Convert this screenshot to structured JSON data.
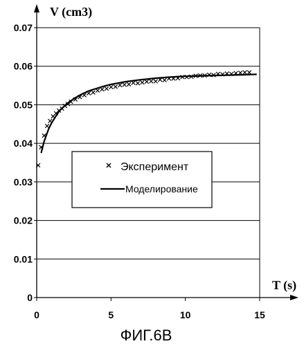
{
  "chart_data": {
    "type": "scatter",
    "ylabel": "V (cm3)",
    "xlabel": "T (s)",
    "xlim": [
      0,
      15
    ],
    "ylim": [
      0,
      0.07
    ],
    "x_ticks": [
      "0",
      "5",
      "10",
      "15"
    ],
    "y_ticks": [
      "0",
      "0.01",
      "0.02",
      "0.03",
      "0.04",
      "0.05",
      "0.06",
      "0.07"
    ],
    "grid": "horizontal",
    "legend_placement": "center",
    "caption": "ФИГ.6В",
    "series": [
      {
        "name": "Эксперимент",
        "kind": "markers",
        "marker": "x",
        "points": [
          [
            0.1,
            0.0343
          ],
          [
            0.3,
            0.039
          ],
          [
            0.5,
            0.042
          ],
          [
            0.7,
            0.0445
          ],
          [
            0.9,
            0.0458
          ],
          [
            1.1,
            0.047
          ],
          [
            1.3,
            0.0478
          ],
          [
            1.5,
            0.0485
          ],
          [
            1.7,
            0.049
          ],
          [
            1.9,
            0.0497
          ],
          [
            2.1,
            0.0502
          ],
          [
            2.3,
            0.0508
          ],
          [
            2.6,
            0.0514
          ],
          [
            2.9,
            0.052
          ],
          [
            3.2,
            0.0525
          ],
          [
            3.5,
            0.053
          ],
          [
            3.8,
            0.0532
          ],
          [
            4.1,
            0.0537
          ],
          [
            4.4,
            0.054
          ],
          [
            4.7,
            0.0542
          ],
          [
            5.0,
            0.0546
          ],
          [
            5.3,
            0.0547
          ],
          [
            5.6,
            0.0551
          ],
          [
            5.9,
            0.0552
          ],
          [
            6.2,
            0.0553
          ],
          [
            6.5,
            0.0557
          ],
          [
            6.8,
            0.0556
          ],
          [
            7.1,
            0.0558
          ],
          [
            7.4,
            0.056
          ],
          [
            7.7,
            0.0561
          ],
          [
            8.0,
            0.0561
          ],
          [
            8.3,
            0.0565
          ],
          [
            8.6,
            0.0564
          ],
          [
            8.9,
            0.0568
          ],
          [
            9.2,
            0.0568
          ],
          [
            9.5,
            0.0569
          ],
          [
            9.8,
            0.0572
          ],
          [
            10.1,
            0.0572
          ],
          [
            10.4,
            0.0573
          ],
          [
            10.7,
            0.0575
          ],
          [
            11.0,
            0.0576
          ],
          [
            11.3,
            0.0576
          ],
          [
            11.6,
            0.0578
          ],
          [
            11.9,
            0.0577
          ],
          [
            12.2,
            0.058
          ],
          [
            12.5,
            0.0579
          ],
          [
            12.8,
            0.0581
          ],
          [
            13.1,
            0.058
          ],
          [
            13.4,
            0.0582
          ],
          [
            13.7,
            0.0583
          ],
          [
            14.0,
            0.0584
          ],
          [
            14.3,
            0.0584
          ]
        ]
      },
      {
        "name": "Моделирование",
        "kind": "line",
        "points": [
          [
            0.3,
            0.0375
          ],
          [
            0.5,
            0.0405
          ],
          [
            0.8,
            0.0437
          ],
          [
            1.0,
            0.0453
          ],
          [
            1.5,
            0.0483
          ],
          [
            2.0,
            0.0502
          ],
          [
            2.5,
            0.0516
          ],
          [
            3.0,
            0.0527
          ],
          [
            3.5,
            0.0536
          ],
          [
            4.0,
            0.0542
          ],
          [
            4.5,
            0.0548
          ],
          [
            5.0,
            0.0553
          ],
          [
            6.0,
            0.056
          ],
          [
            7.0,
            0.0565
          ],
          [
            8.0,
            0.0569
          ],
          [
            9.0,
            0.0572
          ],
          [
            10.0,
            0.0574
          ],
          [
            11.0,
            0.0575
          ],
          [
            12.0,
            0.0576
          ],
          [
            13.0,
            0.0577
          ],
          [
            14.0,
            0.0578
          ],
          [
            14.8,
            0.0579
          ]
        ]
      }
    ]
  }
}
